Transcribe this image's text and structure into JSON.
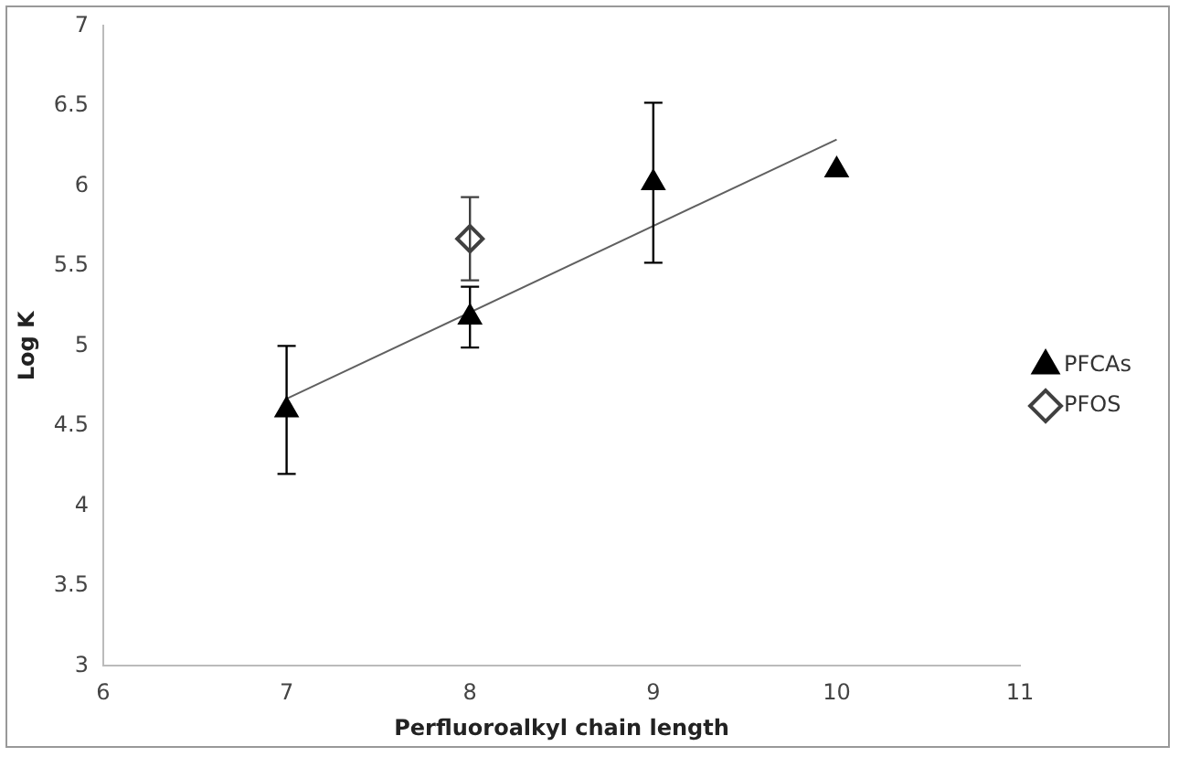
{
  "chart_data": {
    "type": "scatter",
    "xlabel": "Perfluoroalkyl chain length",
    "ylabel": "Log K",
    "xlim": [
      6,
      11
    ],
    "xticks": [
      6,
      7,
      8,
      9,
      10,
      11
    ],
    "ylim": [
      3,
      7
    ],
    "yticks": [
      3,
      3.5,
      4,
      4.5,
      5,
      5.5,
      6,
      6.5,
      7
    ],
    "grid": false,
    "legend": "right",
    "series": [
      {
        "name": "PFCAs",
        "color": "#000000",
        "marker": "triangle",
        "x": [
          7,
          8,
          9,
          10
        ],
        "values": [
          4.6,
          5.18,
          6.02,
          6.1
        ],
        "errors": [
          0.4,
          0.19,
          0.5,
          null
        ]
      },
      {
        "name": "PFOS",
        "color": "#404040",
        "marker": "diamond",
        "x": [
          8
        ],
        "values": [
          5.67
        ],
        "errors": [
          0.26
        ]
      },
      {
        "type": "line",
        "color": "#606060",
        "marker": "none",
        "x": [
          7,
          10
        ],
        "values": [
          4.67,
          6.29
        ]
      }
    ]
  }
}
